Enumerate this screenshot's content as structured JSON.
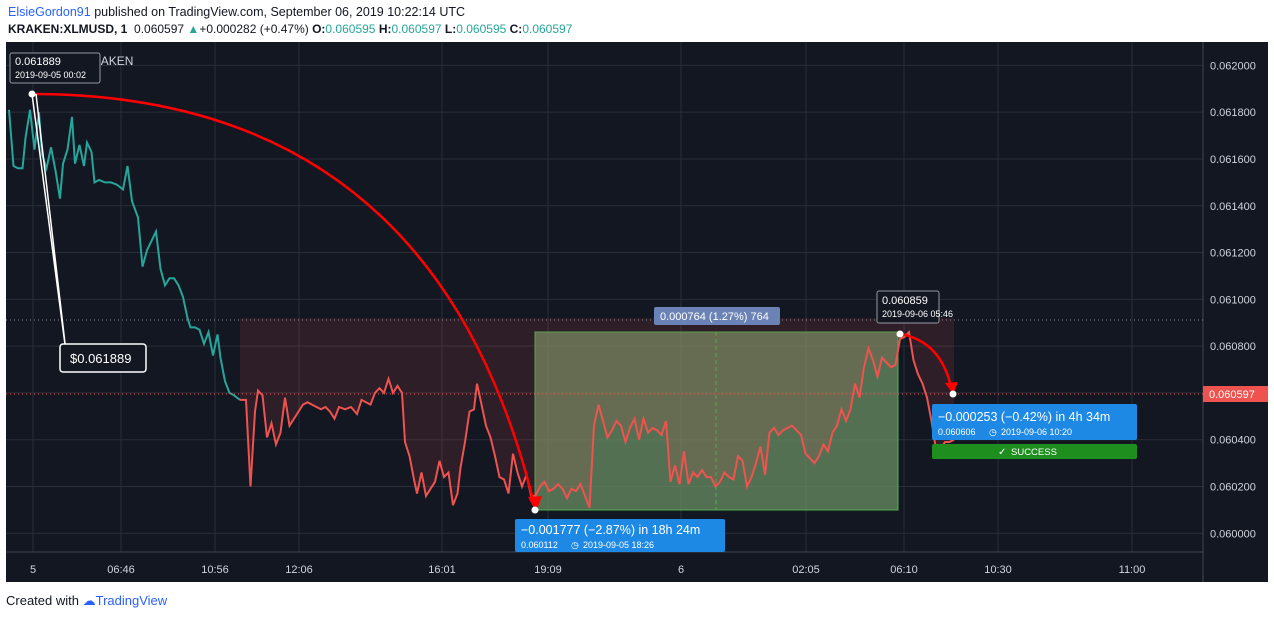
{
  "header": {
    "author": "ElsieGordon91",
    "published_text": "published on TradingView.com, September 06, 2019 10:22:14 UTC",
    "symbol": "KRAKEN:XLMUSD, 1",
    "last_price": "0.060597",
    "change": "+0.000282 (+0.47%)",
    "o_label": "O:",
    "o_value": "0.060595",
    "h_label": "H:",
    "h_value": "0.060597",
    "l_label": "L:",
    "l_value": "0.060595",
    "c_label": "C:",
    "c_value": "0.060597"
  },
  "footer": {
    "created_with": "Created with",
    "brand": "TradingView"
  },
  "colors": {
    "background": "#131722",
    "up": "#26a69a",
    "down": "#ef5350",
    "accent": "#2196f3",
    "arrow": "#ff0000",
    "range_fill": "#6b8f63",
    "success": "#1e8e1e"
  },
  "chart_data": {
    "type": "line",
    "title": "XLMUSD, 1, KRAKEN",
    "ylim": [
      0.05992,
      0.0621
    ],
    "y_ticks": [
      "0.062000",
      "0.061800",
      "0.061600",
      "0.061400",
      "0.061200",
      "0.061000",
      "0.060800",
      "0.060600",
      "0.060400",
      "0.060200",
      "0.060000"
    ],
    "y_tick_values": [
      0.062,
      0.0618,
      0.0616,
      0.0614,
      0.0612,
      0.061,
      0.0608,
      0.0606,
      0.0604,
      0.0602,
      0.06
    ],
    "x_tick_labels": [
      "5",
      "06:46",
      "10:56",
      "12:06",
      "16:01",
      "19:09",
      "6",
      "02:05",
      "06:10",
      "10:30",
      "11:00"
    ],
    "current_price_label": "0.060597",
    "current_price": 0.060597,
    "series": [
      {
        "points": [
          [
            0,
            0.06181
          ],
          [
            3,
            0.06157
          ],
          [
            6,
            0.06156
          ],
          [
            9,
            0.06156
          ],
          [
            11,
            0.06169
          ],
          [
            14,
            0.06181
          ],
          [
            17,
            0.06164
          ],
          [
            20,
            0.0618
          ],
          [
            22,
            0.06162
          ],
          [
            25,
            0.06156
          ],
          [
            28,
            0.06165
          ],
          [
            31,
            0.06155
          ],
          [
            34,
            0.06143
          ],
          [
            36,
            0.06158
          ],
          [
            39,
            0.06164
          ],
          [
            42,
            0.06178
          ],
          [
            44,
            0.06158
          ],
          [
            47,
            0.06166
          ],
          [
            50,
            0.06157
          ],
          [
            52,
            0.06167
          ],
          [
            55,
            0.06163
          ],
          [
            57,
            0.0615
          ],
          [
            60,
            0.06151
          ],
          [
            64,
            0.0615
          ],
          [
            68,
            0.0615
          ],
          [
            72,
            0.06149
          ],
          [
            76,
            0.06147
          ],
          [
            79,
            0.06157
          ],
          [
            82,
            0.06142
          ],
          [
            86,
            0.06135
          ],
          [
            89,
            0.06114
          ],
          [
            92,
            0.06121
          ],
          [
            95,
            0.06125
          ],
          [
            98,
            0.06129
          ],
          [
            101,
            0.06113
          ],
          [
            104,
            0.06106
          ],
          [
            107,
            0.06109
          ],
          [
            110,
            0.06109
          ],
          [
            113,
            0.06106
          ],
          [
            116,
            0.06101
          ],
          [
            119,
            0.06092
          ],
          [
            121,
            0.06088
          ],
          [
            124,
            0.06088
          ],
          [
            127,
            0.06087
          ],
          [
            130,
            0.06081
          ],
          [
            133,
            0.06086
          ],
          [
            136,
            0.06076
          ],
          [
            139,
            0.06085
          ],
          [
            141,
            0.06075
          ],
          [
            144,
            0.06065
          ],
          [
            147,
            0.0606
          ],
          [
            150,
            0.06059
          ],
          [
            154,
            0.06057
          ],
          [
            158,
            0.06057
          ],
          [
            161,
            0.0602
          ],
          [
            164,
            0.06052
          ],
          [
            166,
            0.06061
          ],
          [
            169,
            0.06059
          ],
          [
            172,
            0.06041
          ],
          [
            175,
            0.06047
          ],
          [
            178,
            0.06038
          ],
          [
            181,
            0.06043
          ],
          [
            184,
            0.06058
          ],
          [
            187,
            0.06046
          ],
          [
            190,
            0.06049
          ],
          [
            193,
            0.06052
          ],
          [
            196,
            0.06055
          ],
          [
            199,
            0.06056
          ],
          [
            202,
            0.06055
          ],
          [
            205,
            0.06054
          ],
          [
            208,
            0.06053
          ],
          [
            211,
            0.06054
          ],
          [
            214,
            0.06052
          ],
          [
            217,
            0.06049
          ],
          [
            220,
            0.06054
          ],
          [
            224,
            0.06053
          ],
          [
            228,
            0.06054
          ],
          [
            232,
            0.06051
          ],
          [
            235,
            0.06057
          ],
          [
            238,
            0.06056
          ],
          [
            241,
            0.06055
          ],
          [
            244,
            0.0606
          ],
          [
            247,
            0.06062
          ],
          [
            250,
            0.0606
          ],
          [
            253,
            0.06066
          ],
          [
            256,
            0.0606
          ],
          [
            259,
            0.06063
          ],
          [
            262,
            0.0606
          ],
          [
            264,
            0.06039
          ],
          [
            267,
            0.06033
          ],
          [
            270,
            0.06023
          ],
          [
            272,
            0.06017
          ],
          [
            275,
            0.06026
          ],
          [
            278,
            0.06016
          ],
          [
            281,
            0.06019
          ],
          [
            284,
            0.06022
          ],
          [
            287,
            0.06031
          ],
          [
            290,
            0.06024
          ],
          [
            293,
            0.06026
          ],
          [
            296,
            0.06012
          ],
          [
            299,
            0.06017
          ],
          [
            301,
            0.06028
          ],
          [
            304,
            0.06039
          ],
          [
            307,
            0.06052
          ],
          [
            310,
            0.06053
          ],
          [
            312,
            0.06064
          ],
          [
            315,
            0.06055
          ],
          [
            318,
            0.06046
          ],
          [
            321,
            0.06041
          ],
          [
            324,
            0.06033
          ],
          [
            327,
            0.06024
          ],
          [
            330,
            0.06023
          ],
          [
            333,
            0.06017
          ],
          [
            336,
            0.06034
          ],
          [
            339,
            0.06026
          ],
          [
            342,
            0.0602
          ],
          [
            345,
            0.06025
          ],
          [
            348,
            0.06016
          ],
          [
            351,
            0.06016
          ],
          [
            354,
            0.0602
          ],
          [
            357,
            0.06022
          ],
          [
            360,
            0.06018
          ],
          [
            363,
            0.06019
          ],
          [
            366,
            0.06021
          ],
          [
            369,
            0.06019
          ],
          [
            372,
            0.06015
          ],
          [
            375,
            0.06019
          ],
          [
            378,
            0.06018
          ],
          [
            381,
            0.06021
          ],
          [
            384,
            0.06016
          ],
          [
            387,
            0.06011
          ],
          [
            390,
            0.06046
          ],
          [
            393,
            0.06055
          ],
          [
            396,
            0.06048
          ],
          [
            399,
            0.06041
          ],
          [
            402,
            0.06044
          ],
          [
            405,
            0.06048
          ],
          [
            408,
            0.06046
          ],
          [
            411,
            0.06039
          ],
          [
            414,
            0.06045
          ],
          [
            417,
            0.06049
          ],
          [
            420,
            0.0604
          ],
          [
            423,
            0.06049
          ],
          [
            426,
            0.06043
          ],
          [
            429,
            0.06045
          ],
          [
            432,
            0.06044
          ],
          [
            435,
            0.06042
          ],
          [
            438,
            0.06048
          ],
          [
            441,
            0.06022
          ],
          [
            444,
            0.06029
          ],
          [
            447,
            0.06021
          ],
          [
            450,
            0.06035
          ],
          [
            453,
            0.06021
          ],
          [
            456,
            0.06026
          ],
          [
            459,
            0.06024
          ],
          [
            462,
            0.06027
          ],
          [
            465,
            0.06024
          ],
          [
            468,
            0.06024
          ],
          [
            471,
            0.0602
          ],
          [
            474,
            0.06022
          ],
          [
            477,
            0.06026
          ],
          [
            480,
            0.06024
          ],
          [
            483,
            0.06023
          ],
          [
            486,
            0.06033
          ],
          [
            489,
            0.06031
          ],
          [
            492,
            0.0602
          ],
          [
            495,
            0.06024
          ],
          [
            498,
            0.0603
          ],
          [
            501,
            0.06037
          ],
          [
            504,
            0.06025
          ],
          [
            507,
            0.06043
          ],
          [
            510,
            0.06045
          ],
          [
            513,
            0.06042
          ],
          [
            516,
            0.06044
          ],
          [
            519,
            0.06045
          ],
          [
            522,
            0.06046
          ],
          [
            525,
            0.06044
          ],
          [
            528,
            0.06042
          ],
          [
            531,
            0.06034
          ],
          [
            534,
            0.06032
          ],
          [
            537,
            0.0603
          ],
          [
            540,
            0.06033
          ],
          [
            543,
            0.06038
          ],
          [
            546,
            0.06035
          ],
          [
            549,
            0.06043
          ],
          [
            552,
            0.06046
          ],
          [
            555,
            0.06053
          ],
          [
            558,
            0.06048
          ],
          [
            561,
            0.06053
          ],
          [
            564,
            0.06064
          ],
          [
            567,
            0.06058
          ],
          [
            570,
            0.06071
          ],
          [
            573,
            0.06079
          ],
          [
            576,
            0.06074
          ],
          [
            579,
            0.06067
          ],
          [
            582,
            0.06075
          ],
          [
            585,
            0.06073
          ],
          [
            588,
            0.06071
          ],
          [
            591,
            0.06072
          ],
          [
            594,
            0.06083
          ],
          [
            597,
            0.06084
          ],
          [
            600,
            0.06086
          ],
          [
            603,
            0.06074
          ],
          [
            606,
            0.06068
          ],
          [
            609,
            0.06064
          ],
          [
            612,
            0.06058
          ],
          [
            615,
            0.06048
          ],
          [
            618,
            0.06036
          ],
          [
            621,
            0.06036
          ],
          [
            624,
            0.06039
          ],
          [
            627,
            0.06039
          ],
          [
            630,
            0.0604
          ]
        ]
      }
    ],
    "annotations": {
      "high_label": "0.061889",
      "high_time": "2019-09-05 00:02",
      "price_tag": "$0.061889",
      "measure_drop": "−0.001777 (−2.87%) in 18h 24m",
      "measure_drop_sub": "0.060112",
      "measure_drop_time": "2019-09-05   18:26",
      "range_label": "0.000764 (1.27%) 764",
      "peak_label": "0.060859",
      "peak_time": "2019-09-06 05:46",
      "measure_drop2": "−0.000253 (−0.42%) in 4h 34m",
      "measure_drop2_sub": "0.060606",
      "measure_drop2_time": "2019-09-06   10:20",
      "success": "SUCCESS"
    }
  }
}
